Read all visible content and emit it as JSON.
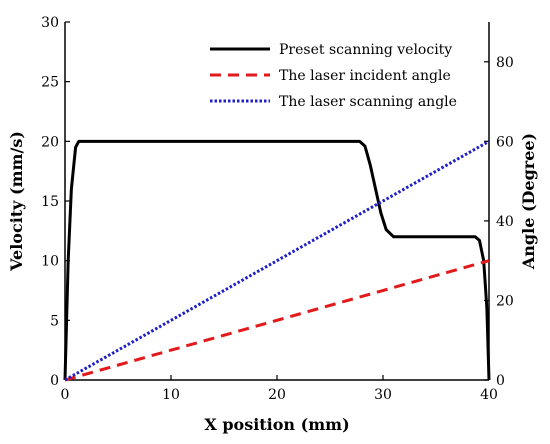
{
  "chart_data": {
    "type": "line",
    "xlabel": "X position (mm)",
    "ylabel_left": "Velocity (mm/s)",
    "ylabel_right": "Angle (Degree)",
    "xlim": [
      0,
      40
    ],
    "ylim_left": [
      0,
      30
    ],
    "ylim_right": [
      0,
      90
    ],
    "x_ticks": [
      "0",
      "10",
      "20",
      "30",
      "40"
    ],
    "y_left_ticks": [
      "0",
      "5",
      "10",
      "15",
      "20",
      "25",
      "30"
    ],
    "y_right_ticks": [
      "0",
      "20",
      "40",
      "60",
      "80"
    ],
    "grid": false,
    "legend_position": "top-right",
    "series": [
      {
        "name": "Preset scanning velocity",
        "axis": "left",
        "color": "#000000",
        "style": "solid",
        "points": [
          [
            0,
            0
          ],
          [
            0.3,
            10
          ],
          [
            0.6,
            16
          ],
          [
            1,
            19.5
          ],
          [
            1.3,
            20
          ],
          [
            10,
            20
          ],
          [
            20,
            20
          ],
          [
            27.8,
            20
          ],
          [
            28.3,
            19.6
          ],
          [
            28.8,
            18
          ],
          [
            29.3,
            16
          ],
          [
            29.8,
            14
          ],
          [
            30.3,
            12.6
          ],
          [
            31,
            12
          ],
          [
            35,
            12
          ],
          [
            38.7,
            12
          ],
          [
            39.1,
            11.7
          ],
          [
            39.5,
            10
          ],
          [
            39.8,
            6
          ],
          [
            40,
            0
          ]
        ]
      },
      {
        "name": "The laser incident angle",
        "axis": "right",
        "color": "#e31a1c",
        "style": "dashed",
        "points": [
          [
            0,
            0
          ],
          [
            40,
            30
          ]
        ]
      },
      {
        "name": "The laser scanning angle",
        "axis": "right",
        "color": "#1f1fc8",
        "style": "dotted",
        "points": [
          [
            0,
            0
          ],
          [
            40,
            60
          ]
        ]
      }
    ]
  }
}
